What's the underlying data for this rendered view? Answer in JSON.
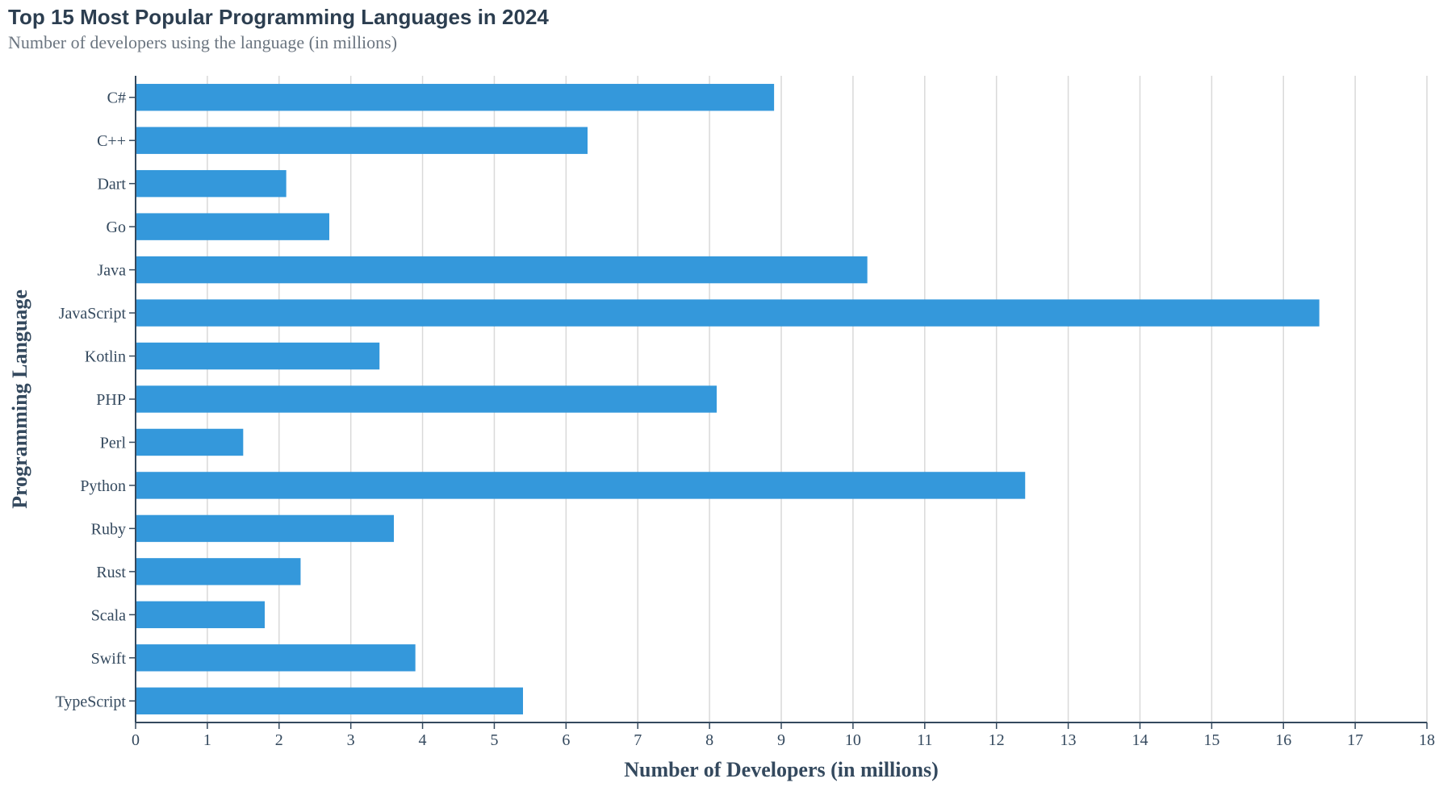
{
  "chart_data": {
    "type": "bar",
    "orientation": "horizontal",
    "title": "Top 15 Most Popular Programming Languages in 2024",
    "subtitle": "Number of developers using the language (in millions)",
    "xlabel": "Number of Developers (in millions)",
    "ylabel": "Programming Language",
    "xlim": [
      0,
      18
    ],
    "x_ticks": [
      0,
      1,
      2,
      3,
      4,
      5,
      6,
      7,
      8,
      9,
      10,
      11,
      12,
      13,
      14,
      15,
      16,
      17,
      18
    ],
    "grid": true,
    "legend": "none",
    "bar_color": "#3498db",
    "categories": [
      "C#",
      "C++",
      "Dart",
      "Go",
      "Java",
      "JavaScript",
      "Kotlin",
      "PHP",
      "Perl",
      "Python",
      "Ruby",
      "Rust",
      "Scala",
      "Swift",
      "TypeScript"
    ],
    "values": [
      8.9,
      6.3,
      2.1,
      2.7,
      10.2,
      16.5,
      3.4,
      8.1,
      1.5,
      12.4,
      3.6,
      2.3,
      1.8,
      3.9,
      5.4
    ]
  }
}
